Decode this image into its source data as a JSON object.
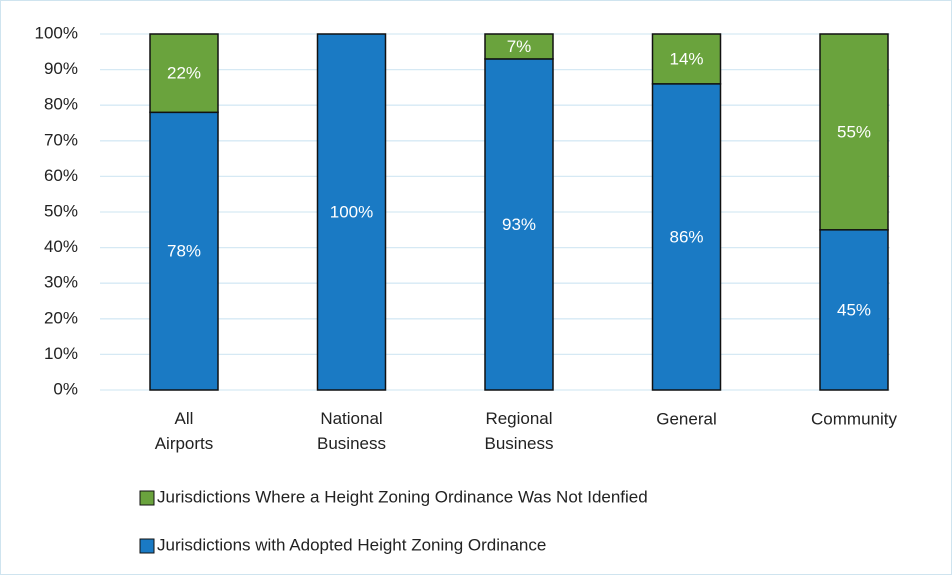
{
  "chart_data": {
    "type": "stacked_bar",
    "categories": [
      "All Airports",
      "National Business",
      "Regional Business",
      "General",
      "Community"
    ],
    "series": [
      {
        "name": "Jurisdictions with Adopted Height Zoning Ordinance",
        "color": "#1a7ac4",
        "values": [
          78,
          100,
          93,
          86,
          45
        ],
        "value_labels": [
          "78%",
          "100%",
          "93%",
          "86%",
          "45%"
        ]
      },
      {
        "name": "Jurisdictions Where a Height Zoning Ordinance Was Not Idenfied",
        "color": "#6aa33d",
        "values": [
          22,
          null,
          7,
          14,
          55
        ],
        "value_labels": [
          "22%",
          null,
          "7%",
          "14%",
          "55%"
        ]
      }
    ],
    "ylim": [
      0,
      100
    ],
    "yticks": [
      {
        "value": 0,
        "label": "0%"
      },
      {
        "value": 10,
        "label": "10%"
      },
      {
        "value": 20,
        "label": "20%"
      },
      {
        "value": 30,
        "label": "30%"
      },
      {
        "value": 40,
        "label": "40%"
      },
      {
        "value": 50,
        "label": "50%"
      },
      {
        "value": 60,
        "label": "60%"
      },
      {
        "value": 70,
        "label": "70%"
      },
      {
        "value": 80,
        "label": "80%"
      },
      {
        "value": 90,
        "label": "90%"
      },
      {
        "value": 100,
        "label": "100%"
      }
    ],
    "grid": true,
    "legend": "bottom"
  }
}
